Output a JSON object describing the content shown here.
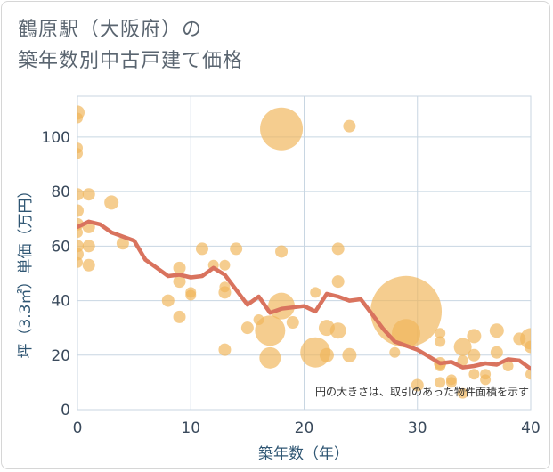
{
  "chart_data": {
    "type": "scatter",
    "title_lines": [
      "鶴原駅（大阪府）の",
      "築年数別中古戸建て価格"
    ],
    "xlabel": "築年数（年）",
    "ylabel": "坪（3.3㎡）単価（万円）",
    "xlim": [
      0,
      40
    ],
    "ylim": [
      0,
      115
    ],
    "xticks": [
      0,
      10,
      20,
      30,
      40
    ],
    "yticks": [
      0,
      20,
      40,
      60,
      80,
      100
    ],
    "note": "円の大きさは、取引のあった物件面積を示す",
    "colors": {
      "bubble": "#f0b55a",
      "trend": "#d9735e",
      "grid": "#c8d6e2"
    },
    "bubbles": [
      {
        "x": 0,
        "y": 109,
        "r": 8
      },
      {
        "x": 0,
        "y": 107,
        "r": 6
      },
      {
        "x": 0,
        "y": 96,
        "r": 6
      },
      {
        "x": 0,
        "y": 94,
        "r": 6
      },
      {
        "x": 0,
        "y": 79,
        "r": 7
      },
      {
        "x": 0,
        "y": 73,
        "r": 7
      },
      {
        "x": 0,
        "y": 68,
        "r": 7
      },
      {
        "x": 0,
        "y": 65,
        "r": 6
      },
      {
        "x": 0,
        "y": 60,
        "r": 7
      },
      {
        "x": 0,
        "y": 57,
        "r": 7
      },
      {
        "x": 0,
        "y": 54,
        "r": 6
      },
      {
        "x": 1,
        "y": 79,
        "r": 7
      },
      {
        "x": 1,
        "y": 67,
        "r": 7
      },
      {
        "x": 1,
        "y": 60,
        "r": 7
      },
      {
        "x": 1,
        "y": 53,
        "r": 7
      },
      {
        "x": 3,
        "y": 76,
        "r": 8
      },
      {
        "x": 4,
        "y": 61,
        "r": 7
      },
      {
        "x": 8,
        "y": 40,
        "r": 7
      },
      {
        "x": 9,
        "y": 52,
        "r": 7
      },
      {
        "x": 9,
        "y": 47,
        "r": 7
      },
      {
        "x": 9,
        "y": 34,
        "r": 7
      },
      {
        "x": 10,
        "y": 43,
        "r": 6
      },
      {
        "x": 10,
        "y": 42,
        "r": 6
      },
      {
        "x": 11,
        "y": 59,
        "r": 7
      },
      {
        "x": 12,
        "y": 53,
        "r": 6
      },
      {
        "x": 13,
        "y": 53,
        "r": 6
      },
      {
        "x": 13,
        "y": 45,
        "r": 6
      },
      {
        "x": 13,
        "y": 43,
        "r": 7
      },
      {
        "x": 13,
        "y": 22,
        "r": 7
      },
      {
        "x": 14,
        "y": 59,
        "r": 7
      },
      {
        "x": 15,
        "y": 30,
        "r": 7
      },
      {
        "x": 16,
        "y": 33,
        "r": 6
      },
      {
        "x": 17,
        "y": 29,
        "r": 17
      },
      {
        "x": 17,
        "y": 19,
        "r": 12
      },
      {
        "x": 18,
        "y": 103,
        "r": 24
      },
      {
        "x": 18,
        "y": 58,
        "r": 7
      },
      {
        "x": 18,
        "y": 38,
        "r": 15
      },
      {
        "x": 19,
        "y": 32,
        "r": 7
      },
      {
        "x": 21,
        "y": 43,
        "r": 6
      },
      {
        "x": 21,
        "y": 21,
        "r": 17
      },
      {
        "x": 22,
        "y": 30,
        "r": 9
      },
      {
        "x": 22,
        "y": 20,
        "r": 8
      },
      {
        "x": 23,
        "y": 59,
        "r": 7
      },
      {
        "x": 23,
        "y": 47,
        "r": 7
      },
      {
        "x": 23,
        "y": 29,
        "r": 9
      },
      {
        "x": 24,
        "y": 104,
        "r": 7
      },
      {
        "x": 24,
        "y": 20,
        "r": 8
      },
      {
        "x": 28,
        "y": 21,
        "r": 6
      },
      {
        "x": 29,
        "y": 36,
        "r": 40
      },
      {
        "x": 29,
        "y": 28,
        "r": 16
      },
      {
        "x": 30,
        "y": 9,
        "r": 7
      },
      {
        "x": 32,
        "y": 28,
        "r": 6
      },
      {
        "x": 32,
        "y": 25,
        "r": 6
      },
      {
        "x": 32,
        "y": 17,
        "r": 7
      },
      {
        "x": 32,
        "y": 16,
        "r": 6
      },
      {
        "x": 32,
        "y": 10,
        "r": 6
      },
      {
        "x": 33,
        "y": 11,
        "r": 6
      },
      {
        "x": 33,
        "y": 10,
        "r": 6
      },
      {
        "x": 34,
        "y": 23,
        "r": 10
      },
      {
        "x": 34,
        "y": 18,
        "r": 6
      },
      {
        "x": 34,
        "y": 6,
        "r": 6
      },
      {
        "x": 35,
        "y": 27,
        "r": 8
      },
      {
        "x": 35,
        "y": 20,
        "r": 7
      },
      {
        "x": 35,
        "y": 13,
        "r": 6
      },
      {
        "x": 36,
        "y": 13,
        "r": 6
      },
      {
        "x": 36,
        "y": 11,
        "r": 6
      },
      {
        "x": 37,
        "y": 29,
        "r": 8
      },
      {
        "x": 37,
        "y": 21,
        "r": 7
      },
      {
        "x": 38,
        "y": 16,
        "r": 6
      },
      {
        "x": 39,
        "y": 26,
        "r": 7
      },
      {
        "x": 40,
        "y": 26,
        "r": 12
      },
      {
        "x": 40,
        "y": 23,
        "r": 7
      },
      {
        "x": 40,
        "y": 13,
        "r": 6
      }
    ],
    "trend": [
      [
        0,
        67
      ],
      [
        1,
        69
      ],
      [
        2,
        68
      ],
      [
        3,
        65
      ],
      [
        4,
        63.5
      ],
      [
        5,
        62
      ],
      [
        6,
        55
      ],
      [
        7,
        52
      ],
      [
        8,
        49
      ],
      [
        9,
        49.5
      ],
      [
        10,
        48.5
      ],
      [
        11,
        49
      ],
      [
        12,
        52
      ],
      [
        13,
        49.5
      ],
      [
        14,
        44
      ],
      [
        15,
        38.5
      ],
      [
        16,
        41.5
      ],
      [
        17,
        35.5
      ],
      [
        18,
        37
      ],
      [
        19,
        37.5
      ],
      [
        20,
        38
      ],
      [
        21,
        36
      ],
      [
        22,
        42.5
      ],
      [
        23,
        41.5
      ],
      [
        24,
        40
      ],
      [
        25,
        40.5
      ],
      [
        26,
        35
      ],
      [
        27,
        29.5
      ],
      [
        28,
        25
      ],
      [
        29,
        23.5
      ],
      [
        30,
        22
      ],
      [
        31,
        19.5
      ],
      [
        32,
        17
      ],
      [
        33,
        17.5
      ],
      [
        34,
        15.5
      ],
      [
        35,
        16
      ],
      [
        36,
        17
      ],
      [
        37,
        16.5
      ],
      [
        38,
        18.5
      ],
      [
        39,
        18
      ],
      [
        40,
        15
      ]
    ]
  }
}
